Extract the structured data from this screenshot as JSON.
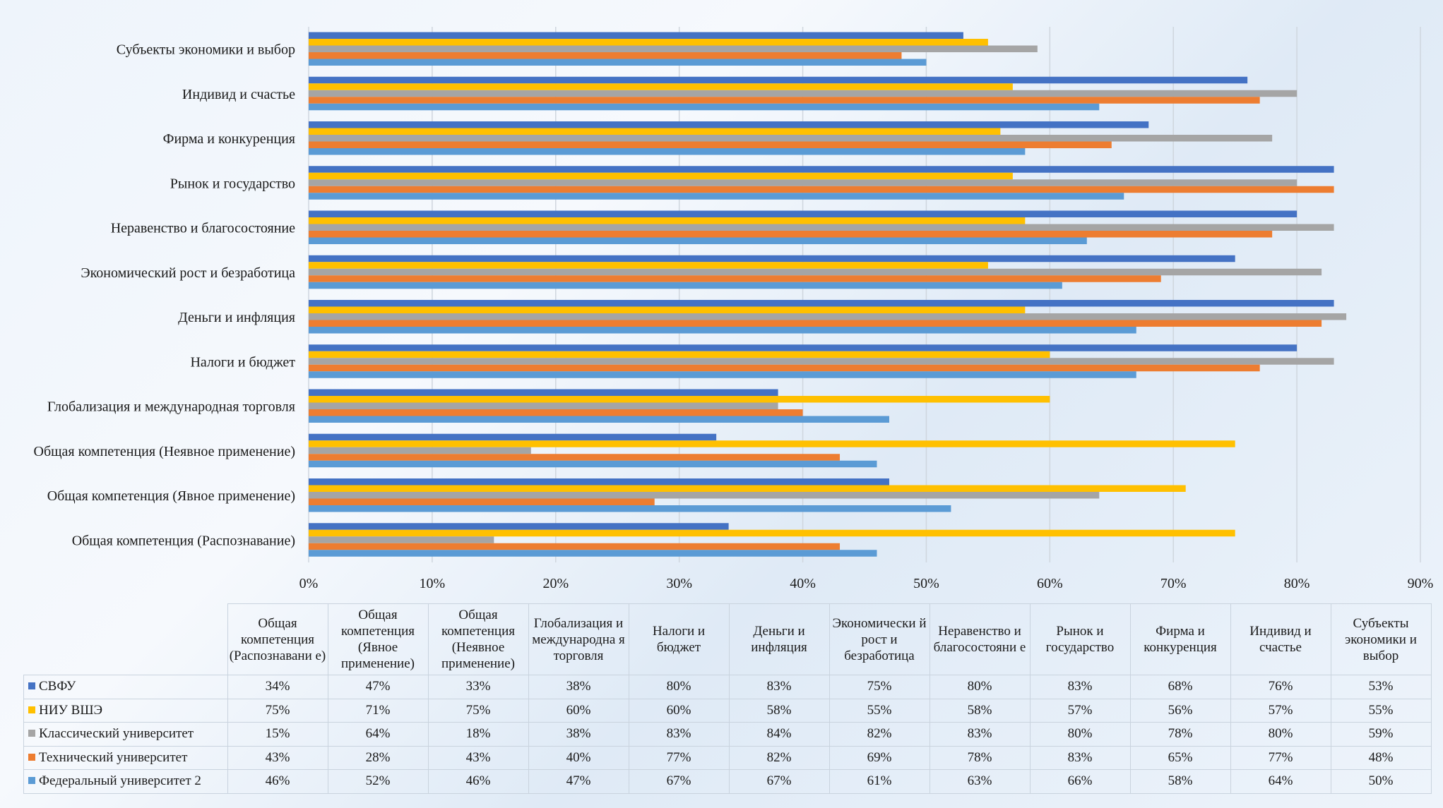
{
  "chart_data": {
    "type": "bar",
    "orientation": "horizontal",
    "categories": [
      "Общая компетенция (Распознавание)",
      "Общая компетенция (Явное применение)",
      "Общая компетенция (Неявное применение)",
      "Глобализация и международная торговля",
      "Налоги и бюджет",
      "Деньги и инфляция",
      "Экономический рост и безработица",
      "Неравенство и благосостояние",
      "Рынок и государство",
      "Фирма и конкуренция",
      "Индивид и счастье",
      "Субъекты экономики и выбор"
    ],
    "table_headers": [
      "Общая компетенция (Распознавани е)",
      "Общая компетенция (Явное применение)",
      "Общая компетенция (Неявное применение)",
      "Глобализация и международна я торговля",
      "Налоги и бюджет",
      "Деньги и инфляция",
      "Экономически й рост и безработица",
      "Неравенство и благосостояни е",
      "Рынок и государство",
      "Фирма и конкуренция",
      "Индивид и счастье",
      "Субъекты экономики и выбор"
    ],
    "series": [
      {
        "name": "СВФУ",
        "color": "#4472C4",
        "values": [
          34,
          47,
          33,
          38,
          80,
          83,
          75,
          80,
          83,
          68,
          76,
          53
        ]
      },
      {
        "name": "НИУ ВШЭ",
        "color": "#FFC000",
        "values": [
          75,
          71,
          75,
          60,
          60,
          58,
          55,
          58,
          57,
          56,
          57,
          55
        ]
      },
      {
        "name": "Классический университет",
        "color": "#A5A5A5",
        "values": [
          15,
          64,
          18,
          38,
          83,
          84,
          82,
          83,
          80,
          78,
          80,
          59
        ]
      },
      {
        "name": "Технический университет",
        "color": "#ED7D31",
        "values": [
          43,
          28,
          43,
          40,
          77,
          82,
          69,
          78,
          83,
          65,
          77,
          48
        ]
      },
      {
        "name": "Федеральный университет 2",
        "color": "#5B9BD5",
        "values": [
          46,
          52,
          46,
          47,
          67,
          67,
          61,
          63,
          66,
          58,
          64,
          50
        ]
      }
    ],
    "xlim": [
      0,
      90
    ],
    "xticks": [
      0,
      10,
      20,
      30,
      40,
      50,
      60,
      70,
      80,
      90
    ],
    "tick_labels": [
      "0%",
      "10%",
      "20%",
      "30%",
      "40%",
      "50%",
      "60%",
      "70%",
      "80%",
      "90%"
    ],
    "value_suffix": "%",
    "grid": true,
    "legend": "data-table-below",
    "title": "",
    "xlabel": "",
    "ylabel": ""
  }
}
